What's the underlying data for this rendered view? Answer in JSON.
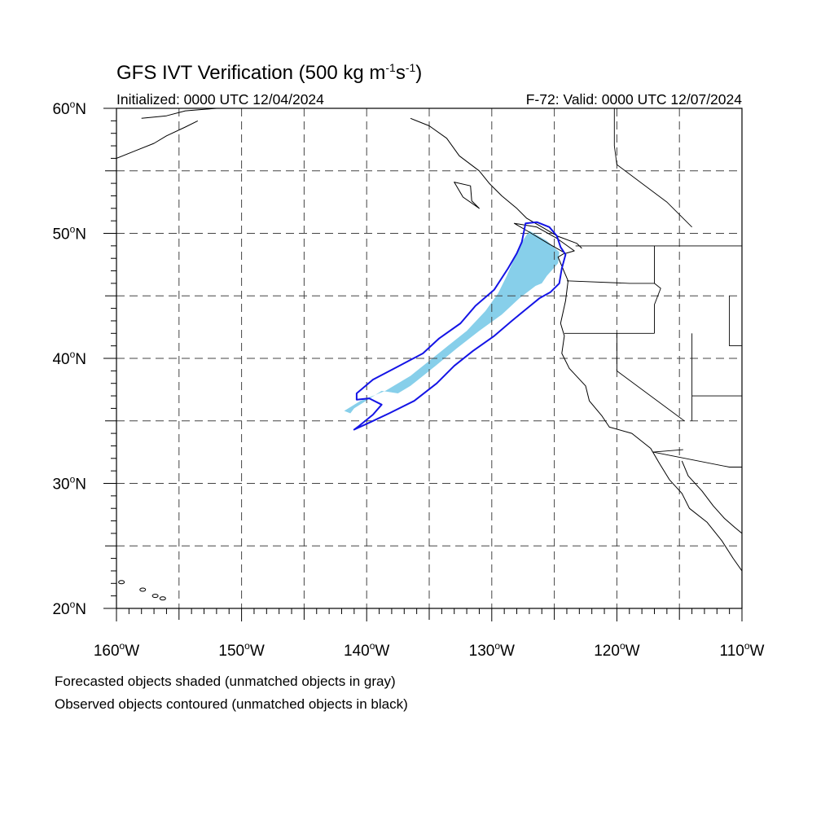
{
  "title_main": "GFS IVT Verification (500 kg m",
  "title_exp1": "-1",
  "title_mid": "s",
  "title_exp2": "-1",
  "title_close": ")",
  "initialized": "Initialized: 0000 UTC 12/04/2024",
  "valid": "F-72: Valid: 0000 UTC 12/07/2024",
  "footnote_1": "Forecasted objects shaded (unmatched objects in gray)",
  "footnote_2": "Observed objects contoured (unmatched objects in black)",
  "lat_labels": [
    {
      "deg": "60",
      "hemi": "N"
    },
    {
      "deg": "50",
      "hemi": "N"
    },
    {
      "deg": "40",
      "hemi": "N"
    },
    {
      "deg": "30",
      "hemi": "N"
    },
    {
      "deg": "20",
      "hemi": "N"
    }
  ],
  "lon_labels": [
    {
      "deg": "160",
      "hemi": "W"
    },
    {
      "deg": "150",
      "hemi": "W"
    },
    {
      "deg": "140",
      "hemi": "W"
    },
    {
      "deg": "130",
      "hemi": "W"
    },
    {
      "deg": "120",
      "hemi": "W"
    },
    {
      "deg": "110",
      "hemi": "W"
    }
  ],
  "map": {
    "lon_range": [
      -160,
      -110
    ],
    "lat_range": [
      20,
      60
    ],
    "grid_step_deg": 5,
    "colors": {
      "forecast_fill": "#87cfea",
      "observed_contour": "#1414e6",
      "coastline": "#000000",
      "grid": "#444444"
    },
    "forecast_object": [
      [
        -141.8,
        35.8
      ],
      [
        -140.5,
        36.6
      ],
      [
        -138.5,
        37.4
      ],
      [
        -136.5,
        38.6
      ],
      [
        -135,
        39.8
      ],
      [
        -133.5,
        41
      ],
      [
        -132,
        42.2
      ],
      [
        -130.5,
        43.8
      ],
      [
        -129.5,
        45.2
      ],
      [
        -128.8,
        46.6
      ],
      [
        -128.2,
        48
      ],
      [
        -127.6,
        49.3
      ],
      [
        -127,
        50.2
      ],
      [
        -125.6,
        49.4
      ],
      [
        -124.6,
        48.5
      ],
      [
        -124.7,
        47.6
      ],
      [
        -125.6,
        46.6
      ],
      [
        -126,
        46
      ],
      [
        -126.5,
        45.8
      ],
      [
        -127.8,
        44.8
      ],
      [
        -129.2,
        43.5
      ],
      [
        -131,
        42.2
      ],
      [
        -132.8,
        40.8
      ],
      [
        -134.5,
        39.4
      ],
      [
        -136.5,
        37.8
      ],
      [
        -137.5,
        37.2
      ],
      [
        -138.8,
        37.4
      ],
      [
        -139.9,
        36.7
      ],
      [
        -141,
        36
      ],
      [
        -141.3,
        35.6
      ]
    ],
    "observed_object": [
      [
        -140.6,
        34.6
      ],
      [
        -139.5,
        35.5
      ],
      [
        -138.8,
        36.3
      ],
      [
        -139.8,
        36.8
      ],
      [
        -140.8,
        36.7
      ],
      [
        -140.8,
        37.2
      ],
      [
        -139.5,
        38.3
      ],
      [
        -137.4,
        39.4
      ],
      [
        -135.5,
        40.4
      ],
      [
        -134.2,
        41.6
      ],
      [
        -132.5,
        42.8
      ],
      [
        -131.3,
        44.2
      ],
      [
        -129.8,
        45.5
      ],
      [
        -128.7,
        47.2
      ],
      [
        -128,
        48.4
      ],
      [
        -127.6,
        49.3
      ],
      [
        -127.3,
        50.8
      ],
      [
        -126.4,
        50.9
      ],
      [
        -125.4,
        50.5
      ],
      [
        -124.8,
        49.8
      ],
      [
        -124.5,
        48.9
      ],
      [
        -124.1,
        48.3
      ],
      [
        -124.4,
        47.2
      ],
      [
        -124.6,
        46.0
      ],
      [
        -125.3,
        45.3
      ],
      [
        -126.2,
        44.8
      ],
      [
        -127.3,
        43.9
      ],
      [
        -128.4,
        43.0
      ],
      [
        -129.8,
        41.8
      ],
      [
        -131.5,
        40.6
      ],
      [
        -133.0,
        39.4
      ],
      [
        -134.4,
        38.0
      ],
      [
        -136.2,
        36.6
      ],
      [
        -138.2,
        35.6
      ],
      [
        -139.7,
        34.9
      ],
      [
        -141.0,
        34.3
      ]
    ],
    "coastline": [
      [
        -124.2,
        48.4
      ],
      [
        -124.7,
        48.1
      ],
      [
        -124.2,
        46.9
      ],
      [
        -123.9,
        46.2
      ],
      [
        -124.1,
        44.6
      ],
      [
        -124.5,
        42.8
      ],
      [
        -124.2,
        41.8
      ],
      [
        -124.4,
        40.4
      ],
      [
        -123.8,
        39.2
      ],
      [
        -122.5,
        37.8
      ],
      [
        -122.2,
        36.6
      ],
      [
        -121.2,
        35.4
      ],
      [
        -120.6,
        34.5
      ],
      [
        -118.8,
        34.0
      ],
      [
        -117.3,
        32.8
      ],
      [
        -116.6,
        31.6
      ],
      [
        -115.8,
        30.3
      ],
      [
        -114.8,
        29.2
      ],
      [
        -114.2,
        28.0
      ],
      [
        -112.8,
        26.9
      ],
      [
        -111.6,
        25.4
      ],
      [
        -110.7,
        24.0
      ],
      [
        -110.0,
        23.0
      ]
    ],
    "gulf_coast": [
      [
        -114.8,
        31.8
      ],
      [
        -114.3,
        30.6
      ],
      [
        -113.2,
        29.4
      ],
      [
        -112.3,
        28.2
      ],
      [
        -111.4,
        27.2
      ],
      [
        -110.6,
        26.5
      ],
      [
        -110.0,
        26.0
      ]
    ],
    "bc_alaska_coast": [
      [
        -136.5,
        59.2
      ],
      [
        -135.0,
        58.6
      ],
      [
        -133.6,
        57.6
      ],
      [
        -132.6,
        56.2
      ],
      [
        -131.0,
        55.0
      ],
      [
        -130.2,
        54.0
      ],
      [
        -129.2,
        53.0
      ],
      [
        -128.0,
        52.0
      ],
      [
        -127.2,
        51.2
      ],
      [
        -125.8,
        50.4
      ],
      [
        -124.8,
        49.8
      ],
      [
        -123.2,
        49.2
      ],
      [
        -122.8,
        48.8
      ]
    ],
    "alaska_coast": [
      [
        -158.0,
        59.2
      ],
      [
        -156.0,
        59.4
      ],
      [
        -154.5,
        59.8
      ],
      [
        -152.0,
        60.0
      ]
    ],
    "alaska_pen": [
      [
        -160.0,
        56.0
      ],
      [
        -158.5,
        56.6
      ],
      [
        -157.0,
        57.2
      ],
      [
        -156.0,
        57.8
      ],
      [
        -154.5,
        58.5
      ],
      [
        -153.5,
        59.0
      ]
    ],
    "haida_gwaii": [
      [
        -133.0,
        54.1
      ],
      [
        -131.7,
        53.8
      ],
      [
        -131.6,
        52.6
      ],
      [
        -131.0,
        52.0
      ],
      [
        -132.3,
        52.9
      ],
      [
        -133.0,
        54.1
      ]
    ],
    "vancouver_island": [
      [
        -128.2,
        50.8
      ],
      [
        -127.0,
        50.1
      ],
      [
        -125.5,
        49.2
      ],
      [
        -124.1,
        48.4
      ],
      [
        -123.4,
        48.6
      ],
      [
        -124.8,
        49.6
      ],
      [
        -126.4,
        50.5
      ],
      [
        -128.2,
        50.8
      ]
    ],
    "borders": [
      [
        [
          -123.3,
          49.0
        ],
        [
          -110.0,
          49.0
        ]
      ],
      [
        [
          -124.2,
          42.0
        ],
        [
          -117.0,
          42.0
        ]
      ],
      [
        [
          -120.0,
          42.0
        ],
        [
          -120.0,
          39.0
        ],
        [
          -114.6,
          35.0
        ]
      ],
      [
        [
          -114.7,
          32.7
        ],
        [
          -117.1,
          32.5
        ]
      ],
      [
        [
          -117.1,
          32.5
        ],
        [
          -111.0,
          31.3
        ],
        [
          -110.0,
          31.3
        ]
      ],
      [
        [
          -117.0,
          49.0
        ],
        [
          -117.0,
          46.0
        ],
        [
          -116.5,
          45.6
        ],
        [
          -117.0,
          44.3
        ],
        [
          -117.0,
          42.0
        ]
      ],
      [
        [
          -124.0,
          46.2
        ],
        [
          -119.0,
          46.0
        ],
        [
          -117.0,
          46.0
        ]
      ],
      [
        [
          -120.2,
          60.0
        ],
        [
          -120.2,
          57.0
        ],
        [
          -120.0,
          55.5
        ],
        [
          -118.0,
          54.0
        ],
        [
          -116.0,
          52.5
        ],
        [
          -114.0,
          50.5
        ]
      ],
      [
        [
          -114.0,
          42.0
        ],
        [
          -114.0,
          35.0
        ]
      ],
      [
        [
          -114.0,
          37.0
        ],
        [
          -110.0,
          37.0
        ]
      ],
      [
        [
          -111.0,
          45.0
        ],
        [
          -111.0,
          41.0
        ],
        [
          -110.0,
          41.0
        ]
      ]
    ],
    "hawaii_islands": [
      [
        -159.6,
        22.1
      ],
      [
        -157.9,
        21.5
      ],
      [
        -156.9,
        21.0
      ],
      [
        -156.3,
        20.8
      ],
      [
        -155.5,
        19.6
      ]
    ]
  }
}
